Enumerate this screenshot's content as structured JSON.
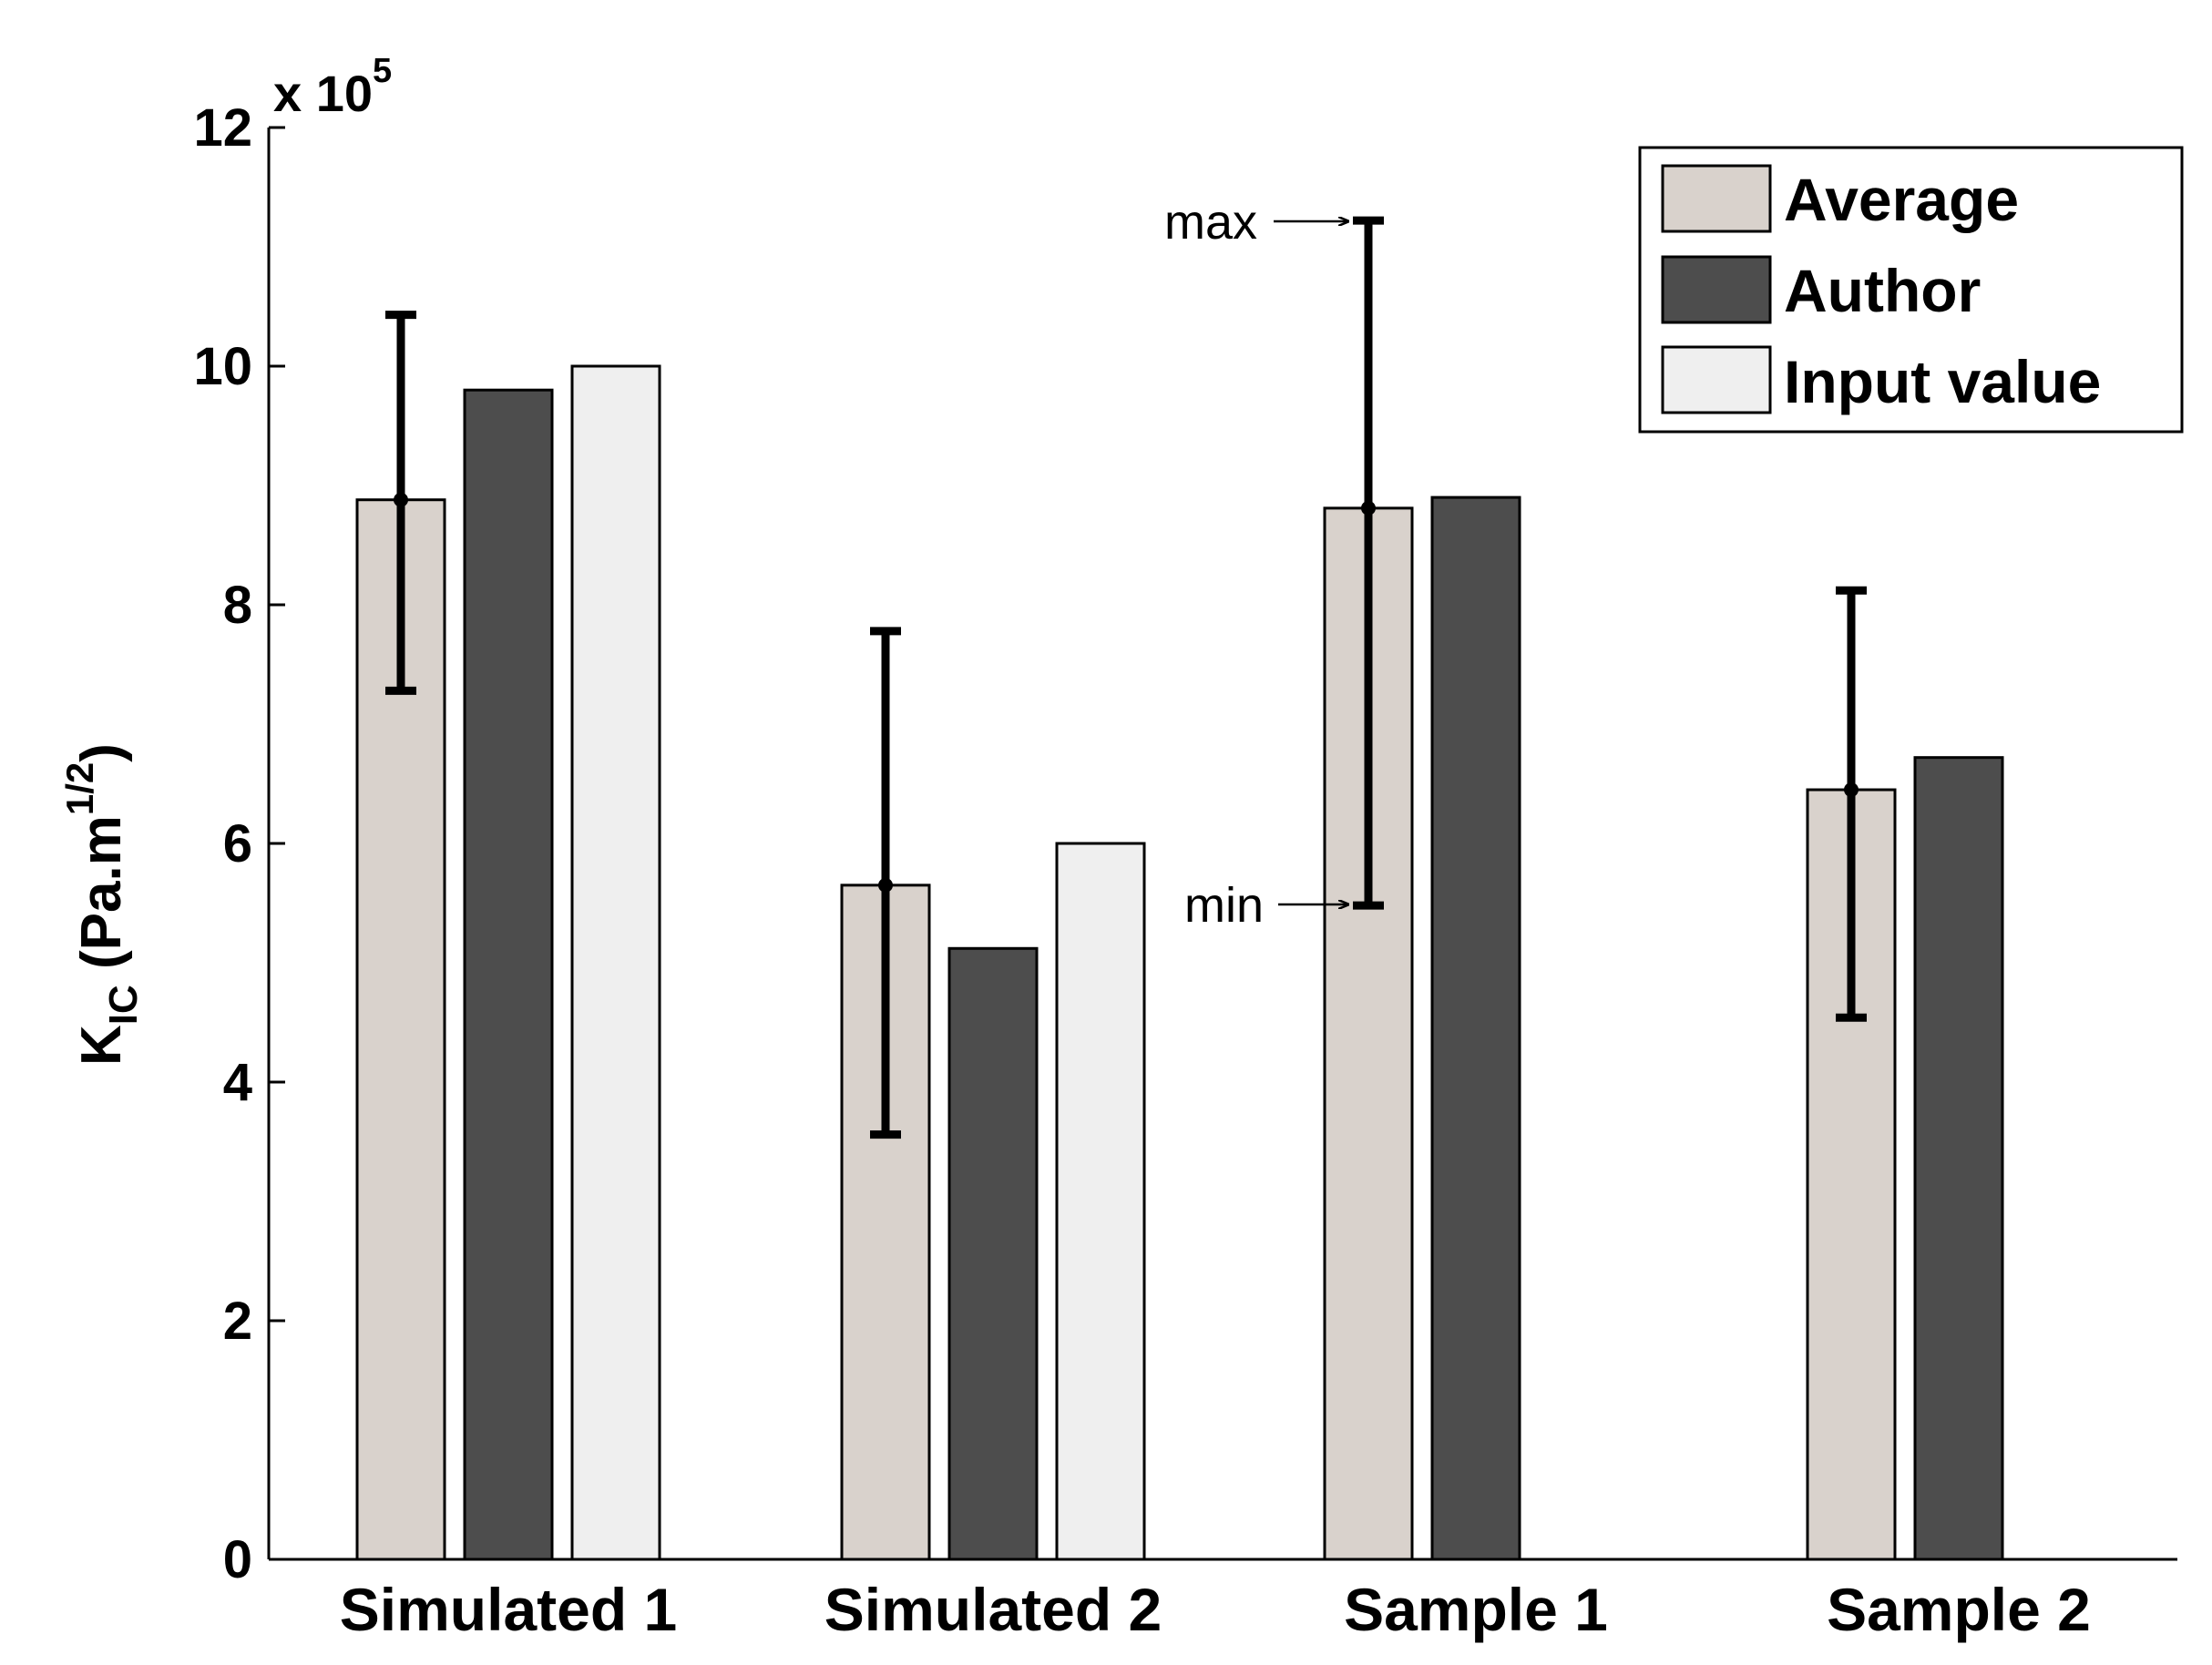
{
  "chart_data": {
    "type": "bar",
    "title": "",
    "xlabel": "",
    "ylabel": {
      "main": "K",
      "subscript": "IC",
      "units_prefix": " (Pa.m",
      "superscript": "1/2",
      "units_suffix": ")"
    },
    "y_multiplier": {
      "prefix": "x 10",
      "exponent": "5"
    },
    "ylim": [
      0,
      12
    ],
    "yticks": [
      0,
      2,
      4,
      6,
      8,
      10,
      12
    ],
    "ytick_labels": [
      "0",
      "2",
      "4",
      "6",
      "8",
      "10",
      "12"
    ],
    "categories": [
      "Simulated 1",
      "Simulated 2",
      "Sample 1",
      "Sample 2"
    ],
    "series": [
      {
        "name": "Average",
        "color": "#d9d2cc",
        "values": [
          8.88,
          5.65,
          8.81,
          6.45
        ]
      },
      {
        "name": "Author",
        "color": "#4d4d4d",
        "values": [
          9.8,
          5.12,
          8.9,
          6.72
        ]
      },
      {
        "name": "Input value",
        "color": "#efefef",
        "values": [
          10.0,
          6.0,
          null,
          null
        ]
      }
    ],
    "error_bars": {
      "series": "Average",
      "min": [
        7.28,
        3.56,
        5.48,
        4.54
      ],
      "max": [
        10.43,
        7.78,
        11.22,
        8.12
      ]
    },
    "annotations": [
      {
        "text": "max",
        "category": "Sample 1",
        "target": "max"
      },
      {
        "text": "min",
        "category": "Sample 1",
        "target": "min"
      }
    ],
    "legend_position": "top-right",
    "grid": false
  }
}
